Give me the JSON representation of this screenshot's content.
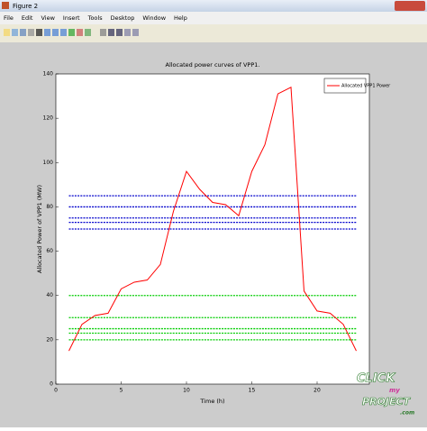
{
  "window": {
    "title": "Figure 2",
    "menu": [
      "File",
      "Edit",
      "View",
      "Insert",
      "Tools",
      "Desktop",
      "Window",
      "Help"
    ]
  },
  "chart_data": {
    "type": "line",
    "title": "Allocated power curves of VPP1.",
    "x_label": "Time (h)",
    "y_label": "Allocated Power of VPP1 (MW)",
    "x": [
      1,
      2,
      3,
      4,
      5,
      6,
      7,
      8,
      9,
      10,
      11,
      12,
      13,
      14,
      15,
      16,
      17,
      18,
      19,
      20,
      21,
      22,
      23
    ],
    "series": [
      {
        "name": "Allocated VPP1 Power",
        "color": "#ff0000",
        "values": [
          15,
          27,
          31,
          32,
          43,
          46,
          47,
          54,
          78,
          96,
          88,
          82,
          81,
          76,
          96,
          108,
          131,
          134,
          42,
          33,
          32,
          27,
          15
        ]
      }
    ],
    "hline_x": [
      1,
      23
    ],
    "hlines": [
      {
        "value": 85,
        "color": "#0000cc"
      },
      {
        "value": 80,
        "color": "#0000cc"
      },
      {
        "value": 75,
        "color": "#0000cc"
      },
      {
        "value": 73,
        "color": "#0000cc"
      },
      {
        "value": 70,
        "color": "#0000cc"
      },
      {
        "value": 40,
        "color": "#00cc00"
      },
      {
        "value": 30,
        "color": "#00cc00"
      },
      {
        "value": 25,
        "color": "#00cc00"
      },
      {
        "value": 23,
        "color": "#00cc00"
      },
      {
        "value": 20,
        "color": "#00cc00"
      }
    ],
    "xlim": [
      0,
      24
    ],
    "xticks": [
      0,
      5,
      10,
      15,
      20
    ],
    "ylim": [
      0,
      140
    ],
    "yticks": [
      0,
      20,
      40,
      60,
      80,
      100,
      120,
      140
    ],
    "legend": "top-right"
  },
  "watermark": [
    "CLICK",
    "my",
    "PROJECT",
    ".com"
  ]
}
